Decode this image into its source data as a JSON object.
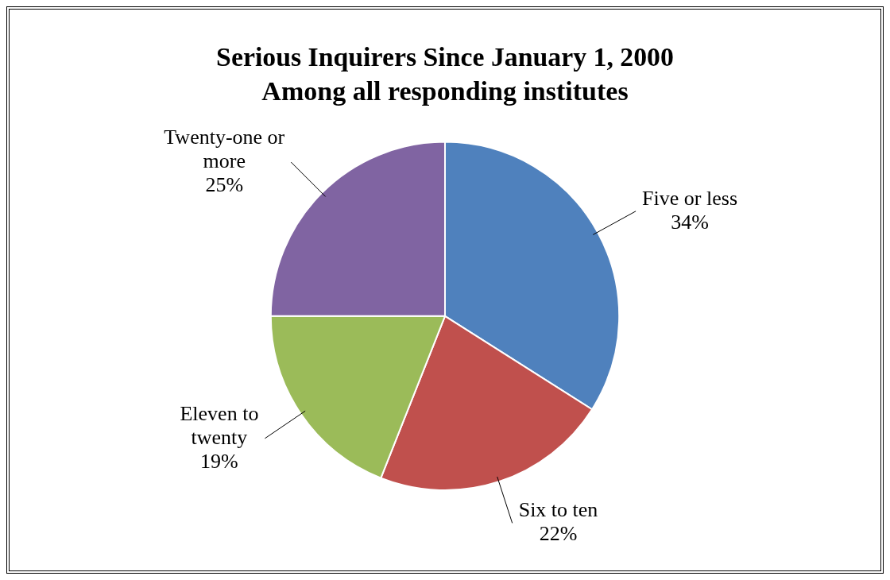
{
  "chart_data": {
    "type": "pie",
    "title": "Serious Inquirers Since January 1, 2000",
    "subtitle": "Among all responding institutes",
    "categories": [
      "Five or less",
      "Six to ten",
      "Eleven to twenty",
      "Twenty-one or more"
    ],
    "values": [
      34,
      22,
      19,
      25
    ],
    "colors": [
      "#4f81bd",
      "#c0504d",
      "#9bbb59",
      "#8064a2"
    ],
    "value_labels": [
      "34%",
      "22%",
      "19%",
      "25%"
    ],
    "legend": false
  }
}
